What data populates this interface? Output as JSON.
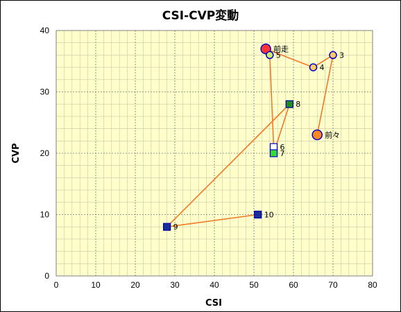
{
  "chart_data": {
    "type": "scatter",
    "title": "CSI-CVP変動",
    "xlabel": "CSI",
    "ylabel": "CVP",
    "xlim": [
      0,
      80
    ],
    "ylim": [
      0,
      40
    ],
    "x_ticks": [
      "0",
      "10",
      "20",
      "30",
      "40",
      "50",
      "60",
      "70",
      "80"
    ],
    "y_ticks": [
      "0",
      "10",
      "20",
      "30",
      "40"
    ],
    "grid": true,
    "plot_background": "#ffffcc",
    "line_color": "#f07828",
    "path_order": [
      "前々",
      "3",
      "4",
      "前走",
      "5",
      "6",
      "7",
      "8",
      "9",
      "10"
    ],
    "points": [
      {
        "label": "前走",
        "x": 53,
        "y": 37,
        "marker": "circle-large",
        "fill": "#ff3333",
        "stroke": "#0000cc"
      },
      {
        "label": "3",
        "x": 70,
        "y": 36,
        "marker": "circle",
        "fill": "#ffcc66",
        "stroke": "#0000cc"
      },
      {
        "label": "5",
        "x": 54,
        "y": 36,
        "marker": "circle",
        "fill": "#ccee66",
        "stroke": "#0000cc"
      },
      {
        "label": "4",
        "x": 65,
        "y": 34,
        "marker": "circle",
        "fill": "#ffcc66",
        "stroke": "#0000cc"
      },
      {
        "label": "8",
        "x": 59,
        "y": 28,
        "marker": "square",
        "fill": "#228b22",
        "stroke": "#0000aa"
      },
      {
        "label": "前々",
        "x": 66,
        "y": 23,
        "marker": "circle-large",
        "fill": "#ff8822",
        "stroke": "#0000cc"
      },
      {
        "label": "6",
        "x": 55,
        "y": 21,
        "marker": "square",
        "fill": "#ffffff",
        "stroke": "#0000cc"
      },
      {
        "label": "7",
        "x": 55,
        "y": 20,
        "marker": "square",
        "fill": "#33dd33",
        "stroke": "#0000cc"
      },
      {
        "label": "10",
        "x": 51,
        "y": 10,
        "marker": "square",
        "fill": "#1a2e99",
        "stroke": "#0000aa"
      },
      {
        "label": "9",
        "x": 28,
        "y": 8,
        "marker": "square",
        "fill": "#1a2e99",
        "stroke": "#0000aa"
      }
    ]
  }
}
